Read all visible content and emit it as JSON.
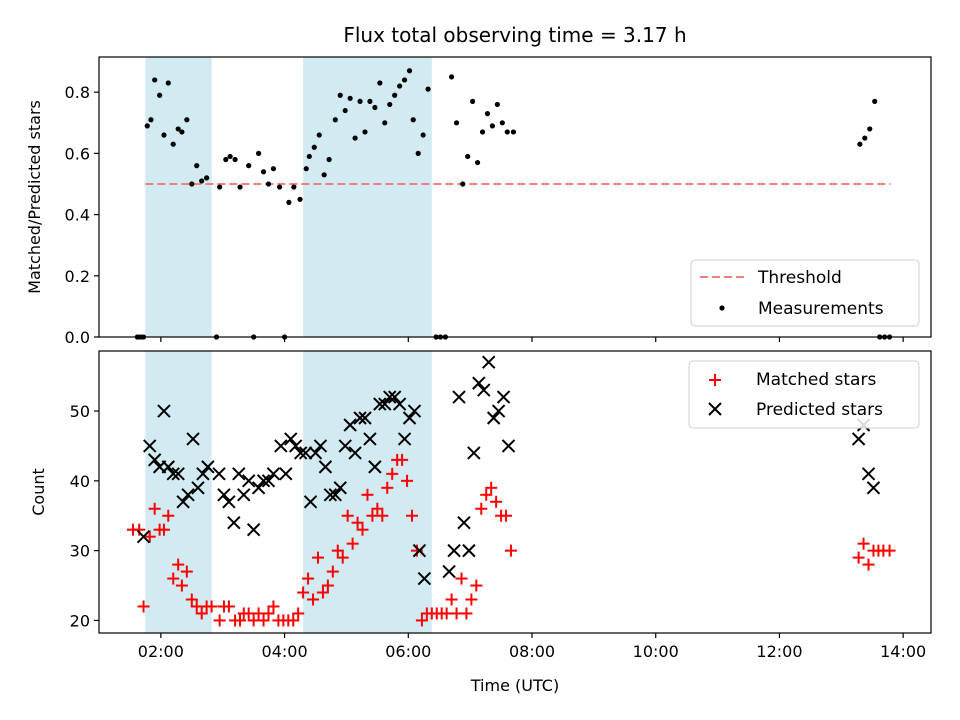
{
  "chart_data": [
    {
      "type": "scatter",
      "title": "Flux total observing time = 3.17 h",
      "xlabel": "",
      "ylabel": "Matched/Predicted stars",
      "ylim": [
        0,
        0.915
      ],
      "xlim_hours": [
        1.0,
        14.45
      ],
      "x_format": "HH:MM (UTC)",
      "xticks": [
        "02:00",
        "04:00",
        "06:00",
        "08:00",
        "10:00",
        "12:00",
        "14:00"
      ],
      "yticks": [
        "0.0",
        "0.2",
        "0.4",
        "0.6",
        "0.8"
      ],
      "shaded_regions_hours": [
        [
          1.75,
          2.82
        ],
        [
          4.3,
          6.38
        ]
      ],
      "shade_color": "#add8e6",
      "threshold": {
        "name": "Threshold",
        "y": 0.5,
        "x_hours": [
          1.75,
          13.8
        ],
        "color": "#f08080",
        "style": "dashed"
      },
      "legend": {
        "placement": "lower-right",
        "entries": [
          "Threshold",
          "Measurements"
        ]
      },
      "series": [
        {
          "name": "Measurements",
          "marker": "dot",
          "color": "#000000",
          "points": [
            [
              1.62,
              0.0
            ],
            [
              1.67,
              0.0
            ],
            [
              1.72,
              0.0
            ],
            [
              1.78,
              0.69
            ],
            [
              1.84,
              0.71
            ],
            [
              1.9,
              0.84
            ],
            [
              1.98,
              0.79
            ],
            [
              2.05,
              0.66
            ],
            [
              2.12,
              0.83
            ],
            [
              2.2,
              0.63
            ],
            [
              2.28,
              0.68
            ],
            [
              2.34,
              0.67
            ],
            [
              2.42,
              0.71
            ],
            [
              2.5,
              0.5
            ],
            [
              2.58,
              0.56
            ],
            [
              2.66,
              0.51
            ],
            [
              2.74,
              0.52
            ],
            [
              2.9,
              0.0
            ],
            [
              2.95,
              0.49
            ],
            [
              3.05,
              0.58
            ],
            [
              3.12,
              0.59
            ],
            [
              3.2,
              0.58
            ],
            [
              3.28,
              0.49
            ],
            [
              3.42,
              0.56
            ],
            [
              3.5,
              0.0
            ],
            [
              3.58,
              0.6
            ],
            [
              3.66,
              0.54
            ],
            [
              3.74,
              0.5
            ],
            [
              3.82,
              0.55
            ],
            [
              3.92,
              0.49
            ],
            [
              4.0,
              0.0
            ],
            [
              4.07,
              0.44
            ],
            [
              4.15,
              0.49
            ],
            [
              4.25,
              0.45
            ],
            [
              4.35,
              0.55
            ],
            [
              4.4,
              0.59
            ],
            [
              4.48,
              0.62
            ],
            [
              4.56,
              0.66
            ],
            [
              4.64,
              0.53
            ],
            [
              4.72,
              0.58
            ],
            [
              4.82,
              0.71
            ],
            [
              4.9,
              0.79
            ],
            [
              4.98,
              0.74
            ],
            [
              5.06,
              0.78
            ],
            [
              5.14,
              0.65
            ],
            [
              5.22,
              0.77
            ],
            [
              5.3,
              0.67
            ],
            [
              5.38,
              0.77
            ],
            [
              5.46,
              0.75
            ],
            [
              5.54,
              0.83
            ],
            [
              5.62,
              0.7
            ],
            [
              5.7,
              0.76
            ],
            [
              5.78,
              0.79
            ],
            [
              5.86,
              0.82
            ],
            [
              5.94,
              0.84
            ],
            [
              6.02,
              0.87
            ],
            [
              6.08,
              0.71
            ],
            [
              6.16,
              0.6
            ],
            [
              6.24,
              0.66
            ],
            [
              6.32,
              0.81
            ],
            [
              6.45,
              0.0
            ],
            [
              6.52,
              0.0
            ],
            [
              6.6,
              0.0
            ],
            [
              6.7,
              0.85
            ],
            [
              6.78,
              0.7
            ],
            [
              6.88,
              0.5
            ],
            [
              6.96,
              0.59
            ],
            [
              7.04,
              0.77
            ],
            [
              7.12,
              0.57
            ],
            [
              7.2,
              0.67
            ],
            [
              7.28,
              0.73
            ],
            [
              7.36,
              0.69
            ],
            [
              7.44,
              0.76
            ],
            [
              7.52,
              0.7
            ],
            [
              7.6,
              0.67
            ],
            [
              7.7,
              0.67
            ],
            [
              13.3,
              0.63
            ],
            [
              13.38,
              0.65
            ],
            [
              13.46,
              0.68
            ],
            [
              13.54,
              0.77
            ],
            [
              13.62,
              0.0
            ],
            [
              13.7,
              0.0
            ],
            [
              13.78,
              0.0
            ]
          ]
        }
      ]
    },
    {
      "type": "scatter",
      "title": "",
      "xlabel": "Time (UTC)",
      "ylabel": "Count",
      "ylim": [
        18.2,
        58.6
      ],
      "xlim_hours": [
        1.0,
        14.45
      ],
      "x_format": "HH:MM (UTC)",
      "xticks": [
        "02:00",
        "04:00",
        "06:00",
        "08:00",
        "10:00",
        "12:00",
        "14:00"
      ],
      "yticks": [
        "20",
        "30",
        "40",
        "50"
      ],
      "shaded_regions_hours": [
        [
          1.75,
          2.82
        ],
        [
          4.3,
          6.38
        ]
      ],
      "shade_color": "#add8e6",
      "legend": {
        "placement": "upper-right",
        "entries": [
          "Matched stars",
          "Predicted stars"
        ]
      },
      "series": [
        {
          "name": "Matched stars",
          "marker": "plus",
          "color": "#ff0000",
          "points": [
            [
              1.55,
              33
            ],
            [
              1.65,
              33
            ],
            [
              1.72,
              22
            ],
            [
              1.82,
              32
            ],
            [
              1.9,
              36
            ],
            [
              1.98,
              33
            ],
            [
              2.05,
              33
            ],
            [
              2.12,
              35
            ],
            [
              2.2,
              26
            ],
            [
              2.28,
              28
            ],
            [
              2.34,
              25
            ],
            [
              2.42,
              27
            ],
            [
              2.5,
              23
            ],
            [
              2.58,
              22
            ],
            [
              2.66,
              21
            ],
            [
              2.74,
              22
            ],
            [
              2.82,
              22
            ],
            [
              2.95,
              20
            ],
            [
              3.02,
              22
            ],
            [
              3.1,
              22
            ],
            [
              3.2,
              20
            ],
            [
              3.28,
              20
            ],
            [
              3.34,
              21
            ],
            [
              3.42,
              21
            ],
            [
              3.5,
              20
            ],
            [
              3.58,
              21
            ],
            [
              3.66,
              20
            ],
            [
              3.74,
              21
            ],
            [
              3.82,
              22
            ],
            [
              3.9,
              20
            ],
            [
              3.98,
              20
            ],
            [
              4.06,
              20
            ],
            [
              4.14,
              20
            ],
            [
              4.22,
              21
            ],
            [
              4.3,
              24
            ],
            [
              4.38,
              26
            ],
            [
              4.46,
              23
            ],
            [
              4.54,
              29
            ],
            [
              4.62,
              24
            ],
            [
              4.7,
              25
            ],
            [
              4.78,
              27
            ],
            [
              4.86,
              30
            ],
            [
              4.94,
              29
            ],
            [
              5.02,
              35
            ],
            [
              5.1,
              31
            ],
            [
              5.18,
              34
            ],
            [
              5.26,
              33
            ],
            [
              5.34,
              38
            ],
            [
              5.42,
              35
            ],
            [
              5.5,
              36
            ],
            [
              5.58,
              35
            ],
            [
              5.66,
              39
            ],
            [
              5.74,
              41
            ],
            [
              5.82,
              43
            ],
            [
              5.9,
              43
            ],
            [
              5.98,
              40
            ],
            [
              6.06,
              35
            ],
            [
              6.14,
              30
            ],
            [
              6.22,
              20
            ],
            [
              6.3,
              21
            ],
            [
              6.38,
              21
            ],
            [
              6.46,
              21
            ],
            [
              6.54,
              21
            ],
            [
              6.62,
              21
            ],
            [
              6.7,
              23
            ],
            [
              6.78,
              21
            ],
            [
              6.86,
              26
            ],
            [
              6.94,
              21
            ],
            [
              7.02,
              23
            ],
            [
              7.1,
              25
            ],
            [
              7.18,
              36
            ],
            [
              7.26,
              38
            ],
            [
              7.34,
              39
            ],
            [
              7.42,
              37
            ],
            [
              7.5,
              35
            ],
            [
              7.58,
              35
            ],
            [
              7.66,
              30
            ],
            [
              13.28,
              29
            ],
            [
              13.36,
              31
            ],
            [
              13.44,
              28
            ],
            [
              13.52,
              30
            ],
            [
              13.6,
              30
            ],
            [
              13.68,
              30
            ],
            [
              13.78,
              30
            ]
          ]
        },
        {
          "name": "Predicted stars",
          "marker": "x",
          "color": "#000000",
          "points": [
            [
              1.72,
              32
            ],
            [
              1.82,
              45
            ],
            [
              1.9,
              43
            ],
            [
              1.98,
              42
            ],
            [
              2.05,
              50
            ],
            [
              2.12,
              42
            ],
            [
              2.2,
              41
            ],
            [
              2.28,
              41
            ],
            [
              2.36,
              37
            ],
            [
              2.44,
              38
            ],
            [
              2.52,
              46
            ],
            [
              2.6,
              39
            ],
            [
              2.68,
              41
            ],
            [
              2.76,
              42
            ],
            [
              2.94,
              41
            ],
            [
              3.02,
              38
            ],
            [
              3.1,
              37
            ],
            [
              3.18,
              34
            ],
            [
              3.26,
              41
            ],
            [
              3.34,
              38
            ],
            [
              3.42,
              40
            ],
            [
              3.5,
              33
            ],
            [
              3.58,
              39
            ],
            [
              3.66,
              40
            ],
            [
              3.74,
              40
            ],
            [
              3.82,
              41
            ],
            [
              3.94,
              45
            ],
            [
              4.02,
              41
            ],
            [
              4.1,
              46
            ],
            [
              4.18,
              45
            ],
            [
              4.26,
              44
            ],
            [
              4.34,
              44
            ],
            [
              4.42,
              37
            ],
            [
              4.5,
              44
            ],
            [
              4.58,
              45
            ],
            [
              4.66,
              42
            ],
            [
              4.74,
              38
            ],
            [
              4.82,
              38
            ],
            [
              4.9,
              39
            ],
            [
              4.98,
              45
            ],
            [
              5.06,
              48
            ],
            [
              5.14,
              44
            ],
            [
              5.22,
              49
            ],
            [
              5.3,
              49
            ],
            [
              5.38,
              46
            ],
            [
              5.46,
              42
            ],
            [
              5.54,
              51
            ],
            [
              5.62,
              51
            ],
            [
              5.7,
              52
            ],
            [
              5.78,
              52
            ],
            [
              5.86,
              51
            ],
            [
              5.94,
              46
            ],
            [
              6.02,
              49
            ],
            [
              6.1,
              50
            ],
            [
              6.18,
              30
            ],
            [
              6.26,
              26
            ],
            [
              6.66,
              27
            ],
            [
              6.74,
              30
            ],
            [
              6.82,
              52
            ],
            [
              6.9,
              34
            ],
            [
              6.98,
              30
            ],
            [
              7.06,
              44
            ],
            [
              7.14,
              54
            ],
            [
              7.22,
              53
            ],
            [
              7.3,
              57
            ],
            [
              7.38,
              49
            ],
            [
              7.46,
              50
            ],
            [
              7.54,
              52
            ],
            [
              7.62,
              45
            ],
            [
              13.28,
              46
            ],
            [
              13.36,
              48
            ],
            [
              13.44,
              41
            ],
            [
              13.52,
              39
            ]
          ]
        }
      ]
    }
  ]
}
